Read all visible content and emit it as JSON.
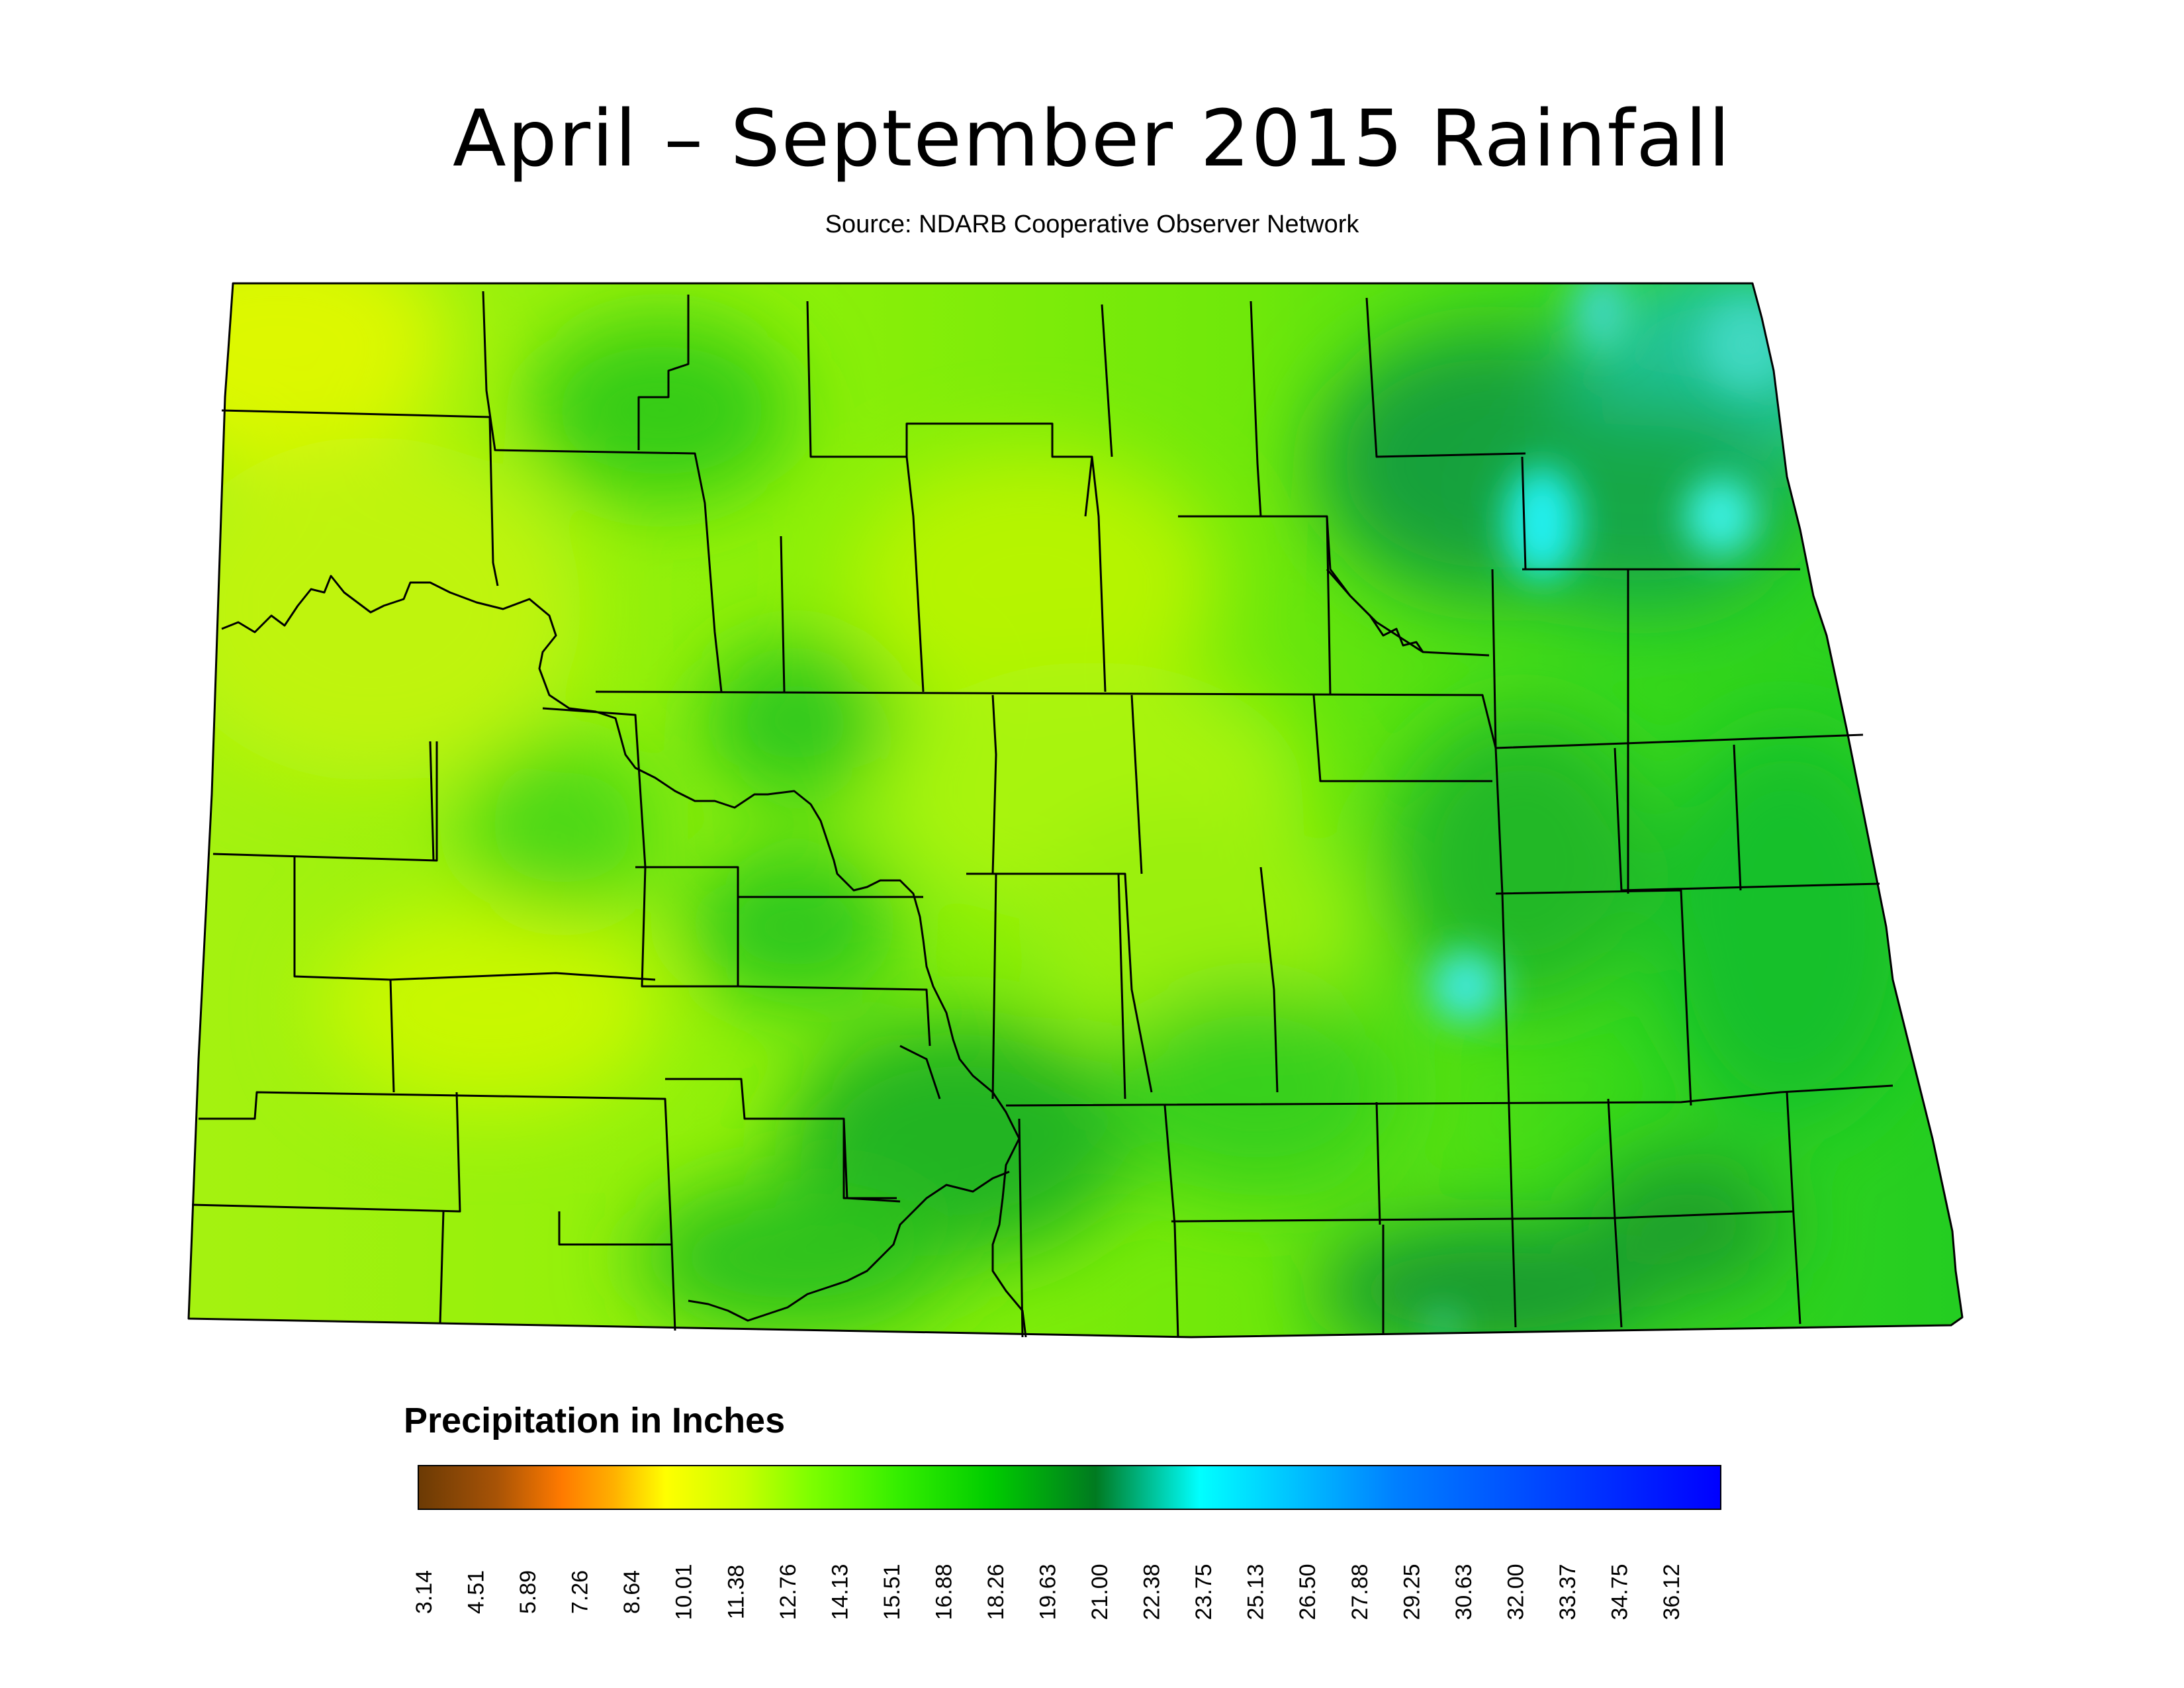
{
  "title": "April – September 2015 Rainfall",
  "subtitle": "Source: NDARB Cooperative Observer Network",
  "legend": {
    "title": "Precipitation in Inches",
    "ticks": [
      "3.14",
      "4.51",
      "5.89",
      "7.26",
      "8.64",
      "10.01",
      "11.38",
      "12.76",
      "14.13",
      "15.51",
      "16.88",
      "18.26",
      "19.63",
      "21.00",
      "22.38",
      "23.75",
      "25.13",
      "26.50",
      "27.88",
      "29.25",
      "30.63",
      "32.00",
      "33.37",
      "34.75",
      "36.12"
    ],
    "colors": [
      "#6b3a05",
      "#a75306",
      "#ff7a00",
      "#ffb000",
      "#ffff00",
      "#c8ff00",
      "#7fff00",
      "#33ee00",
      "#00cc00",
      "#007a20",
      "#00ffff",
      "#0080ff",
      "#0000ff"
    ]
  }
}
